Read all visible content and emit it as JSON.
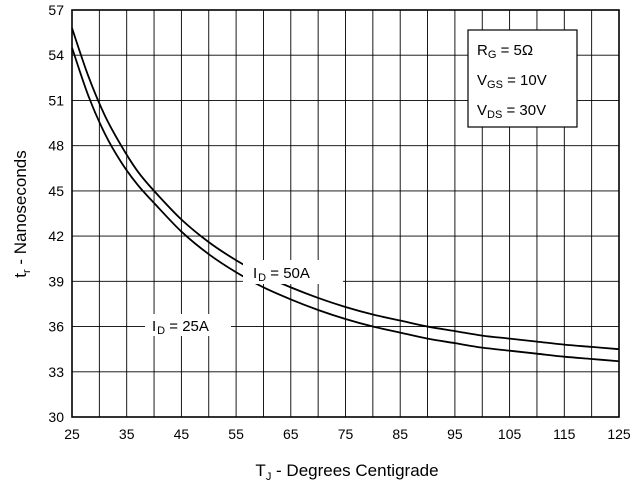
{
  "chart_data": {
    "type": "line",
    "xlabel": {
      "main": "T",
      "sub": "J",
      "rest": " - Degrees Centigrade"
    },
    "ylabel": {
      "main": "t",
      "sub": "r",
      "rest": " - Nanoseconds"
    },
    "xlim": [
      25,
      125
    ],
    "ylim": [
      30,
      57
    ],
    "x_ticks": [
      25,
      35,
      45,
      55,
      65,
      75,
      85,
      95,
      105,
      115,
      125
    ],
    "y_ticks": [
      30,
      33,
      36,
      39,
      42,
      45,
      48,
      51,
      54,
      57
    ],
    "grid": true,
    "x_grid_step": 5,
    "series": [
      {
        "name": "I D = 50A",
        "label": {
          "main": "I",
          "sub": "D",
          "rest": " = 50A"
        },
        "x": [
          25,
          28,
          31,
          34,
          37,
          40,
          45,
          50,
          55,
          60,
          65,
          70,
          75,
          80,
          85,
          90,
          95,
          100,
          105,
          110,
          115,
          120,
          125
        ],
        "y": [
          55.8,
          52.6,
          50.0,
          48.0,
          46.3,
          45.0,
          43.1,
          41.6,
          40.4,
          39.4,
          38.6,
          37.9,
          37.3,
          36.8,
          36.4,
          36.0,
          35.7,
          35.4,
          35.2,
          35.0,
          34.8,
          34.65,
          34.5
        ]
      },
      {
        "name": "I D = 25A",
        "label": {
          "main": "I",
          "sub": "D",
          "rest": " = 25A"
        },
        "x": [
          25,
          28,
          31,
          34,
          37,
          40,
          45,
          50,
          55,
          60,
          65,
          70,
          75,
          80,
          85,
          90,
          95,
          100,
          105,
          110,
          115,
          120,
          125
        ],
        "y": [
          54.5,
          51.3,
          48.8,
          46.9,
          45.4,
          44.2,
          42.3,
          40.8,
          39.6,
          38.6,
          37.8,
          37.1,
          36.5,
          36.0,
          35.6,
          35.2,
          34.9,
          34.6,
          34.4,
          34.2,
          34.0,
          33.85,
          33.7
        ]
      }
    ],
    "conditions": [
      {
        "main": "R",
        "sub": "G",
        "rest": " = 5Ω"
      },
      {
        "main": "V",
        "sub": "GS",
        "rest": " = 10V"
      },
      {
        "main": "V",
        "sub": "DS",
        "rest": " = 30V"
      }
    ]
  }
}
